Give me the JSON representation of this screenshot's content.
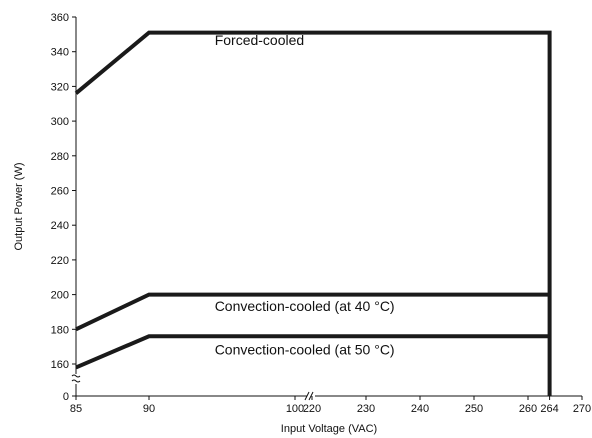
{
  "chart_data": {
    "type": "line",
    "xlabel": "Input Voltage (VAC)",
    "ylabel": "Output Power (W)",
    "x_ticks": [
      85,
      90,
      100,
      220,
      230,
      240,
      250,
      260,
      264,
      270
    ],
    "y_ticks": [
      0,
      160,
      180,
      200,
      220,
      240,
      260,
      280,
      300,
      320,
      340,
      360
    ],
    "x_break_after": 100,
    "y_break_after": 0,
    "grid": false,
    "series": [
      {
        "name": "Forced-cooled",
        "points": [
          [
            85,
            316
          ],
          [
            90,
            351
          ],
          [
            264,
            351
          ],
          [
            264,
            0
          ]
        ]
      },
      {
        "name": "Convection-cooled (at 40 °C)",
        "points": [
          [
            85,
            180
          ],
          [
            90,
            200
          ],
          [
            264,
            200
          ]
        ]
      },
      {
        "name": "Convection-cooled (at 50 °C)",
        "points": [
          [
            85,
            158
          ],
          [
            90,
            176
          ],
          [
            264,
            176
          ]
        ]
      }
    ],
    "annotations": [
      {
        "text": "Forced-cooled",
        "anchor": [
          94.5,
          344
        ]
      },
      {
        "text": "Convection-cooled (at 40 °C)",
        "anchor": [
          94.5,
          190.5
        ]
      },
      {
        "text": "Convection-cooled (at 50 °C)",
        "anchor": [
          94.5,
          165.5
        ]
      }
    ],
    "style": {
      "line_color": "#1a1a1a",
      "axis_color": "#111111"
    }
  }
}
